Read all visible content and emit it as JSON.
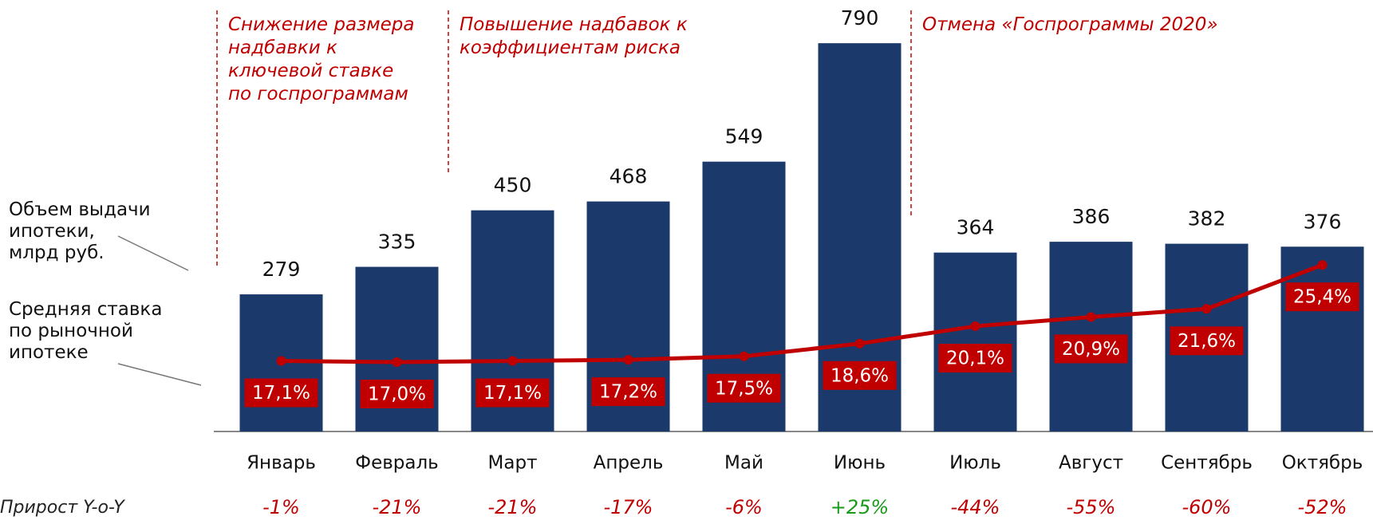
{
  "chart_data": {
    "type": "bar",
    "categories": [
      "Январь",
      "Февраль",
      "Март",
      "Апрель",
      "Май",
      "Июнь",
      "Июль",
      "Август",
      "Сентябрь",
      "Октябрь"
    ],
    "series": [
      {
        "name": "Объем выдачи\nипотеки,\nмлрд руб.",
        "color": "#1b3a6b",
        "type": "bar",
        "values": [
          279,
          335,
          450,
          468,
          549,
          790,
          364,
          386,
          382,
          376
        ]
      },
      {
        "name": "Средняя ставка\nпо рыночной\nипотеке",
        "color": "#c00000",
        "type": "line",
        "axis": "y2",
        "values": [
          17.1,
          17.0,
          17.1,
          17.2,
          17.5,
          18.6,
          20.1,
          20.9,
          21.6,
          25.4
        ],
        "value_labels": [
          "17,1%",
          "17,0%",
          "17,1%",
          "17,2%",
          "17,5%",
          "18,6%",
          "20,1%",
          "20,9%",
          "21,6%",
          "25,4%"
        ]
      }
    ],
    "ylim": [
      0,
      800
    ],
    "y2lim": [
      11,
      45
    ],
    "annotations": [
      {
        "text": "Снижение размера\nнадбавки к\nключевой ставке\nпо госпрограммам",
        "category": 0
      },
      {
        "text": "Повышение надбавок к\nкоэффициентам риска",
        "category": 2
      },
      {
        "text": "Отмена «Госпрограммы 2020»",
        "category": 6
      }
    ],
    "growth": {
      "label": "Прирост Y-o-Y",
      "values": [
        "-1%",
        "-21%",
        "-21%",
        "-17%",
        "-6%",
        "+25%",
        "-44%",
        "-55%",
        "-60%",
        "-52%"
      ],
      "colors": [
        "#c00000",
        "#c00000",
        "#c00000",
        "#c00000",
        "#c00000",
        "#1a9a1a",
        "#c00000",
        "#c00000",
        "#c00000",
        "#c00000"
      ]
    }
  }
}
